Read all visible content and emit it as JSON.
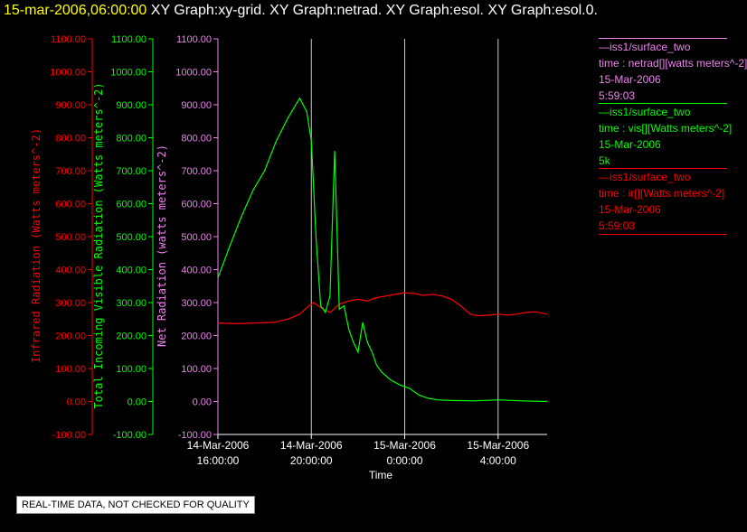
{
  "title": {
    "timestamp": "15-mar-2006,06:00:00",
    "rest": "  XY Graph:xy-grid.  XY Graph:netrad.  XY Graph:esol.  XY Graph:esol.0."
  },
  "legend": [
    {
      "lines": [
        "—iss1/surface_two",
        "time : netrad[][watts meters^-2]",
        "15-Mar-2006",
        "5:59:03"
      ],
      "color": "#ee82ee"
    },
    {
      "lines": [
        "—iss1/surface_two",
        "time : vis[][Watts meters^-2]",
        "15-Mar-2006",
        "5k"
      ],
      "color": "#00ff00"
    },
    {
      "lines": [
        "—iss1/surface_two",
        "time : ir[][Watts meters^-2]",
        "15-Mar-2006",
        "5:59:03"
      ],
      "color": "#ff0000"
    }
  ],
  "note": "REAL-TIME DATA, NOT CHECKED FOR QUALITY",
  "chart_data": {
    "type": "line",
    "title": "",
    "xlabel": "Time",
    "x_ticks": [
      {
        "x": 16,
        "date": "14-Mar-2006",
        "time": "16:00:00"
      },
      {
        "x": 20,
        "date": "14-Mar-2006",
        "time": "20:00:00"
      },
      {
        "x": 24,
        "date": "15-Mar-2006",
        "time": "0:00:00"
      },
      {
        "x": 28,
        "date": "15-Mar-2006",
        "time": "4:00:00"
      }
    ],
    "xlim": [
      16.0,
      30.1
    ],
    "ylim": [
      -100,
      1100
    ],
    "grid": "vertical",
    "axes": [
      {
        "label": "Infrared Radiation (Watts meters^-2)",
        "color": "#ff0000",
        "ticks": [
          "1100.00",
          "1000.00",
          "900.00",
          "800.00",
          "700.00",
          "600.00",
          "500.00",
          "400.00",
          "300.00",
          "200.00",
          "100.00",
          "0.00",
          "-100.00"
        ]
      },
      {
        "label": "Total Incoming Visible Radiation (Watts meters^-2)",
        "color": "#00ff00",
        "ticks": [
          "1100.00",
          "1000.00",
          "900.00",
          "800.00",
          "700.00",
          "600.00",
          "500.00",
          "400.00",
          "300.00",
          "200.00",
          "100.00",
          "0.00",
          "-100.00"
        ]
      },
      {
        "label": "Net Radiation (watts meters^-2)",
        "color": "#ee82ee",
        "ticks": [
          "1100.00",
          "1000.00",
          "900.00",
          "800.00",
          "700.00",
          "600.00",
          "500.00",
          "400.00",
          "300.00",
          "200.00",
          "100.00",
          "0.00",
          "-100.00"
        ]
      }
    ],
    "series": [
      {
        "name": "ir",
        "color": "#ff0000",
        "x": [
          16.0,
          16.8,
          17.6,
          18.4,
          19.0,
          19.5,
          19.9,
          20.1,
          20.4,
          20.8,
          21.2,
          21.6,
          22.0,
          22.4,
          22.8,
          23.2,
          23.6,
          24.0,
          24.4,
          24.8,
          25.2,
          25.6,
          26.0,
          26.4,
          26.8,
          27.2,
          27.6,
          28.0,
          28.4,
          28.8,
          29.2,
          29.6,
          30.1
        ],
        "y": [
          238,
          236,
          238,
          240,
          250,
          265,
          290,
          300,
          285,
          270,
          295,
          305,
          310,
          305,
          315,
          320,
          325,
          330,
          328,
          322,
          325,
          320,
          310,
          290,
          265,
          260,
          262,
          265,
          262,
          265,
          270,
          272,
          265
        ]
      },
      {
        "name": "vis",
        "color": "#00ff00",
        "x": [
          16.0,
          16.5,
          17.0,
          17.5,
          18.0,
          18.5,
          19.0,
          19.5,
          19.8,
          20.0,
          20.2,
          20.4,
          20.6,
          20.8,
          21.0,
          21.2,
          21.4,
          21.6,
          21.8,
          22.0,
          22.2,
          22.4,
          22.6,
          22.8,
          23.0,
          23.4,
          23.8,
          24.2,
          24.6,
          25.0,
          25.4,
          26.0,
          27.0,
          28.0,
          29.0,
          30.1
        ],
        "y": [
          375,
          470,
          560,
          640,
          700,
          790,
          860,
          920,
          880,
          790,
          500,
          290,
          270,
          320,
          760,
          280,
          290,
          220,
          180,
          150,
          240,
          180,
          150,
          110,
          90,
          65,
          50,
          40,
          20,
          10,
          5,
          3,
          2,
          5,
          2,
          0
        ]
      },
      {
        "name": "netrad",
        "color": "#ee82ee",
        "x": [],
        "y": []
      }
    ]
  }
}
